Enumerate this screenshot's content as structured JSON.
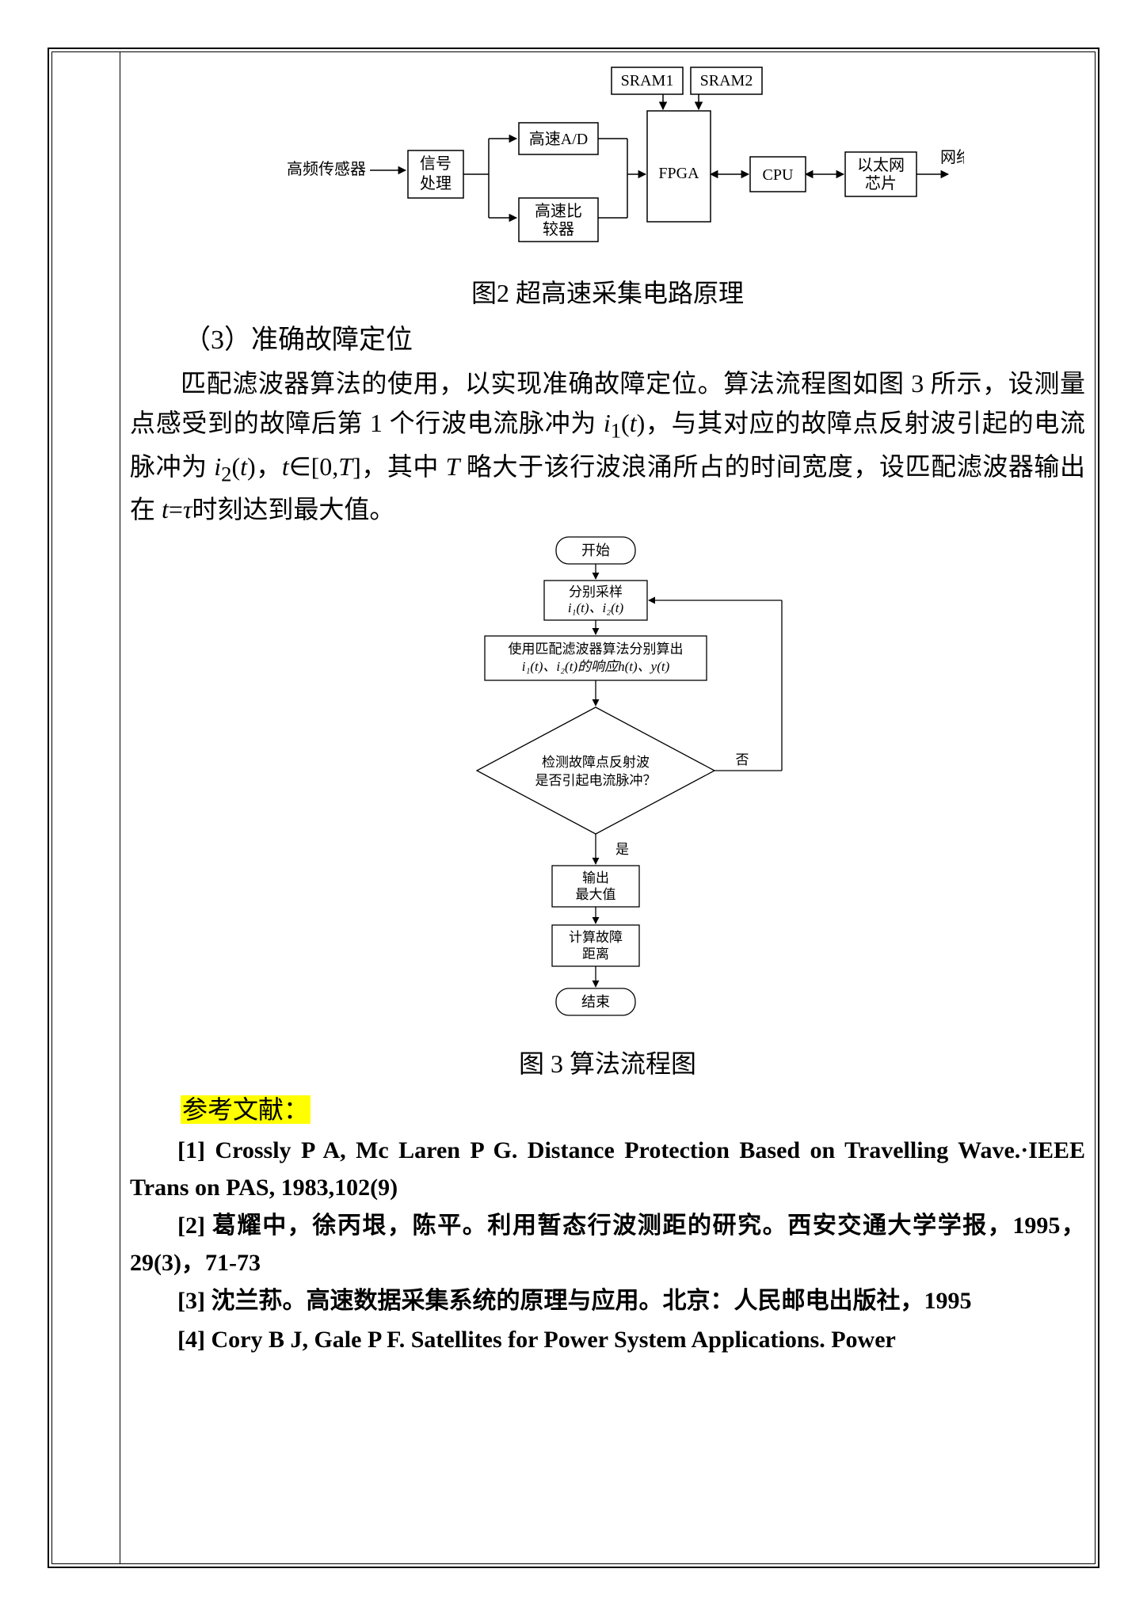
{
  "fig2": {
    "caption": "图2  超高速采集电路原理",
    "nodes": {
      "sensor_label": "高频传感器",
      "sigproc": "信号\n处理",
      "adc": "高速A/D",
      "comp": "高速比\n较器",
      "fpga": "FPGA",
      "sram1": "SRAM1",
      "sram2": "SRAM2",
      "cpu": "CPU",
      "eth": "以太网\n芯片",
      "net_label": "网络"
    },
    "stroke": "#000000",
    "fill": "#ffffff",
    "fontsize": 20
  },
  "section3_head": "（3）准确故障定位",
  "para3_html": "匹配滤波器算法的使用，以实现准确故障定位。算法流程图如图 3 所示，设测量点感受到的故障后第 1 个行波电流脉冲为 <i>i</i><sub>1</sub>(<i>t</i>)，与其对应的故障点反射波引起的电流脉冲为 <i>i</i><sub>2</sub>(<i>t</i>)，<i>t</i>∈[0,<i>T</i>]，其中 <i>T</i> 略大于该行波浪涌所占的时间宽度，设匹配滤波器输出在 <i>t</i>=<i>τ</i>时刻达到最大值。",
  "fig3": {
    "caption": "图 3  算法流程图",
    "nodes": {
      "start": "开始",
      "sample_l1": "分别采样",
      "sample_l2": "i₁(t)、i₂(t)",
      "match_l1": "使用匹配滤波器算法分别算出",
      "match_l2": "i₁(t)、i₂(t)的响应h(t)、y(t)",
      "decision_l1": "检测故障点反射波",
      "decision_l2": "是否引起电流脉冲？",
      "no": "否",
      "yes": "是",
      "out_l1": "输出",
      "out_l2": "最大值",
      "calc_l1": "计算故障",
      "calc_l2": "距离",
      "end": "结束"
    },
    "stroke": "#000000",
    "fontsize": 18
  },
  "references_head": "参考文献：",
  "references": [
    "[1] Crossly P A, Mc Laren P G. Distance Protection Based on Travelling Wave.·IEEE Trans on PAS, 1983,102(9)",
    "[2] 葛耀中，徐丙垠，陈平。利用暂态行波测距的研究。西安交通大学学报，1995，29(3)，71-73",
    "[3] 沈兰荪。高速数据采集系统的原理与应用。北京：人民邮电出版社，1995",
    "[4] Cory B J, Gale P F. Satellites for Power System Applications. Power"
  ]
}
